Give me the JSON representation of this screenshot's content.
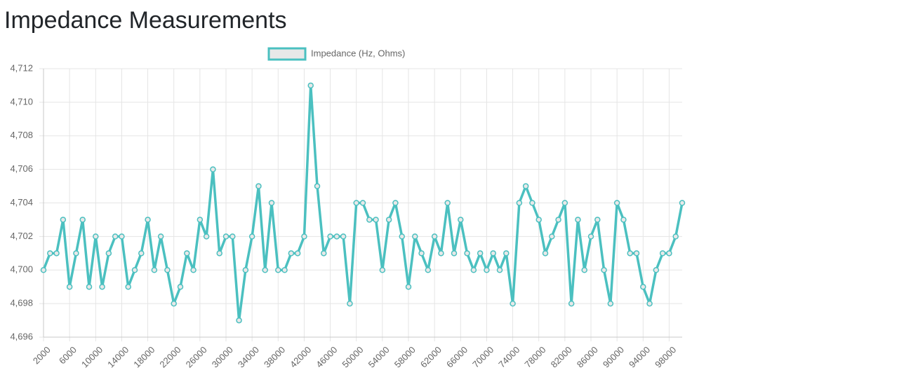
{
  "chart_data": {
    "type": "line",
    "title": "Impedance Measurements",
    "x": [
      2000,
      3000,
      4000,
      5000,
      6000,
      7000,
      8000,
      9000,
      10000,
      11000,
      12000,
      13000,
      14000,
      15000,
      16000,
      17000,
      18000,
      19000,
      20000,
      21000,
      22000,
      23000,
      24000,
      25000,
      26000,
      27000,
      28000,
      29000,
      30000,
      31000,
      32000,
      33000,
      34000,
      35000,
      36000,
      37000,
      38000,
      39000,
      40000,
      41000,
      42000,
      43000,
      44000,
      45000,
      46000,
      47000,
      48000,
      49000,
      50000,
      51000,
      52000,
      53000,
      54000,
      55000,
      56000,
      57000,
      58000,
      59000,
      60000,
      61000,
      62000,
      63000,
      64000,
      65000,
      66000,
      67000,
      68000,
      69000,
      70000,
      71000,
      72000,
      73000,
      74000,
      75000,
      76000,
      77000,
      78000,
      79000,
      80000,
      81000,
      82000,
      83000,
      84000,
      85000,
      86000,
      87000,
      88000,
      89000,
      90000,
      91000,
      92000,
      93000,
      94000,
      95000,
      96000,
      97000,
      98000,
      99000,
      100000
    ],
    "series": [
      {
        "name": "Impedance (Hz, Ohms)",
        "color": "#4bc0c0",
        "fill": "#e8e8e8",
        "values": [
          4700,
          4701,
          4701,
          4703,
          4699,
          4701,
          4703,
          4699,
          4702,
          4699,
          4701,
          4702,
          4702,
          4699,
          4700,
          4701,
          4703,
          4700,
          4702,
          4700,
          4698,
          4699,
          4701,
          4700,
          4703,
          4702,
          4706,
          4701,
          4702,
          4702,
          4697,
          4700,
          4702,
          4705,
          4700,
          4704,
          4700,
          4700,
          4701,
          4701,
          4702,
          4711,
          4705,
          4701,
          4702,
          4702,
          4702,
          4698,
          4704,
          4704,
          4703,
          4703,
          4700,
          4703,
          4704,
          4702,
          4699,
          4702,
          4701,
          4700,
          4702,
          4701,
          4704,
          4701,
          4703,
          4701,
          4700,
          4701,
          4700,
          4701,
          4700,
          4701,
          4698,
          4704,
          4705,
          4704,
          4703,
          4701,
          4702,
          4703,
          4704,
          4698,
          4703,
          4700,
          4702,
          4703,
          4700,
          4698,
          4704,
          4703,
          4701,
          4701,
          4699,
          4698,
          4700,
          4701,
          4701,
          4702,
          4704
        ]
      }
    ],
    "xlim": [
      2000,
      100000
    ],
    "xticks": [
      2000,
      6000,
      10000,
      14000,
      18000,
      22000,
      26000,
      30000,
      34000,
      38000,
      42000,
      46000,
      50000,
      54000,
      58000,
      62000,
      66000,
      70000,
      74000,
      78000,
      82000,
      86000,
      90000,
      94000,
      98000
    ],
    "ylim": [
      4696,
      4712
    ],
    "yticks": [
      {
        "value": 4696,
        "label": "4,696"
      },
      {
        "value": 4698,
        "label": "4,698"
      },
      {
        "value": 4700,
        "label": "4,700"
      },
      {
        "value": 4702,
        "label": "4,702"
      },
      {
        "value": 4704,
        "label": "4,704"
      },
      {
        "value": 4706,
        "label": "4,706"
      },
      {
        "value": 4708,
        "label": "4,708"
      },
      {
        "value": 4710,
        "label": "4,710"
      },
      {
        "value": 4712,
        "label": "4,712"
      }
    ],
    "grid": true,
    "legend": "top"
  }
}
